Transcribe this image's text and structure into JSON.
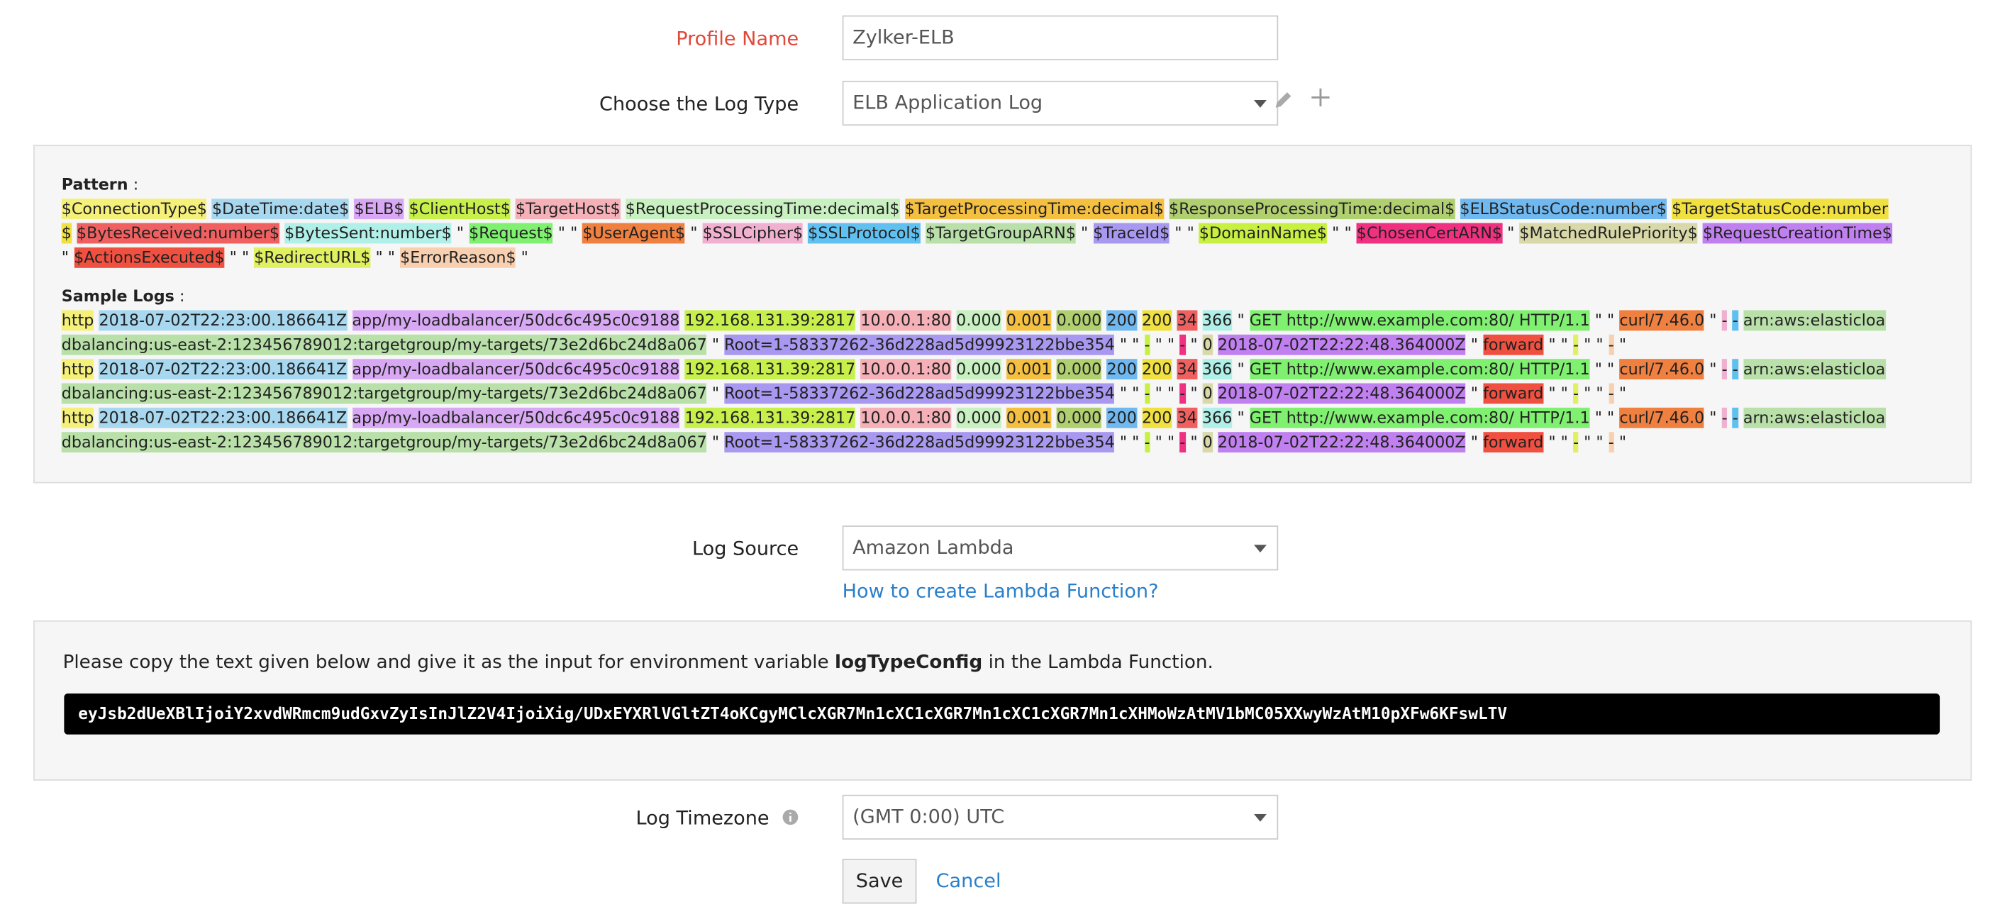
{
  "profile": {
    "label": "Profile Name",
    "value": "Zylker-ELB"
  },
  "log_type": {
    "label": "Choose the Log Type",
    "value": "ELB Application Log"
  },
  "pattern": {
    "label": "Pattern",
    "colon": ":",
    "tokens": [
      [
        "$ConnectionType$",
        "#f5f07a"
      ],
      [
        "$DateTime:date$",
        "#a8d8f0"
      ],
      [
        "$ELB$",
        "#d9a8f5"
      ],
      [
        "$ClientHost$",
        "#c8f04a"
      ],
      [
        "$TargetHost$",
        "#f5b0b8"
      ],
      [
        "$RequestProcessingTime:decimal$",
        "#c8f0c0"
      ],
      [
        "$TargetProcessingTime:decimal$",
        "#f5c040"
      ],
      [
        "$ResponseProcessingTime:decimal$",
        "#b0d070"
      ],
      [
        "$ELBStatusCode:number$",
        "#70b8f0"
      ],
      [
        "$TargetStatusCode:number$",
        "#f0e040"
      ],
      [
        "$BytesReceived:number$",
        "#f06060"
      ],
      [
        "$BytesSent:number$",
        "#b0f0e8"
      ],
      [
        "\"",
        null
      ],
      [
        "$Request$",
        "#80f070"
      ],
      [
        "\" \"",
        null
      ],
      [
        "$UserAgent$",
        "#f08040"
      ],
      [
        "\"",
        null
      ],
      [
        "$SSLCipher$",
        "#f0b0d0"
      ],
      [
        "$SSLProtocol$",
        "#60c0f0"
      ],
      [
        "$TargetGroupARN$",
        "#b8e0a8"
      ],
      [
        "\"",
        null
      ],
      [
        "$TraceId$",
        "#a898f0"
      ],
      [
        "\" \"",
        null
      ],
      [
        "$DomainName$",
        "#c8f040"
      ],
      [
        "\" \"",
        null
      ],
      [
        "$ChosenCertARN$",
        "#f03080"
      ],
      [
        "\"",
        null
      ],
      [
        "$MatchedRulePriority$",
        "#d8d8a8"
      ],
      [
        "$RequestCreationTime$",
        "#c080f0"
      ],
      [
        "\"",
        null
      ],
      [
        "$ActionsExecuted$",
        "#f05040"
      ],
      [
        "\" \"",
        null
      ],
      [
        "$RedirectURL$",
        "#e0f060"
      ],
      [
        "\" \"",
        null
      ],
      [
        "$ErrorReason$",
        "#f8d0b0"
      ],
      [
        "\"",
        null
      ]
    ]
  },
  "sample_logs": {
    "label": "Sample Logs",
    "colon": ":",
    "lines": [
      [
        [
          "http",
          "#f5f07a"
        ],
        [
          "2018-07-02T22:23:00.186641Z",
          "#a8d8f0"
        ],
        [
          "app/my-loadbalancer/50dc6c495c0c9188",
          "#d9a8f5"
        ],
        [
          "192.168.131.39:2817",
          "#c8f04a"
        ],
        [
          "10.0.0.1:80",
          "#f5b0b8"
        ],
        [
          "0.000",
          "#c8f0c0"
        ],
        [
          "0.001",
          "#f5c040"
        ],
        [
          "0.000",
          "#b0d070"
        ],
        [
          "200",
          "#70b8f0"
        ],
        [
          "200",
          "#f0e040"
        ],
        [
          "34",
          "#f06060"
        ],
        [
          "366",
          "#b0f0e8"
        ],
        [
          "\"",
          null
        ],
        [
          "GET http://www.example.com:80/ HTTP/1.1",
          "#80f070"
        ],
        [
          "\" \"",
          null
        ],
        [
          "curl/7.46.0",
          "#f08040"
        ],
        [
          "\"",
          null
        ],
        [
          "-",
          "#f0b0d0"
        ],
        [
          "-",
          "#60c0f0"
        ],
        [
          "arn:aws:elasticloadbalancing:us-east-2:123456789012:targetgroup/my-targets/73e2d6bc24d8a067",
          "#b8e0a8"
        ],
        [
          "\"",
          null
        ],
        [
          "Root=1-58337262-36d228ad5d99923122bbe354",
          "#a898f0"
        ],
        [
          "\" \"",
          null
        ],
        [
          "-",
          "#c8f040"
        ],
        [
          "\" \"",
          null
        ],
        [
          "-",
          "#f03080"
        ],
        [
          "\"",
          null
        ],
        [
          "0",
          "#d8d8a8"
        ],
        [
          "2018-07-02T22:22:48.364000Z",
          "#c080f0"
        ],
        [
          "\"",
          null
        ],
        [
          "forward",
          "#f05040"
        ],
        [
          "\" \"",
          null
        ],
        [
          "-",
          "#e0f060"
        ],
        [
          "\" \"",
          null
        ],
        [
          "-",
          "#f8d0b0"
        ],
        [
          "\"",
          null
        ]
      ],
      [
        [
          "http",
          "#f5f07a"
        ],
        [
          "2018-07-02T22:23:00.186641Z",
          "#a8d8f0"
        ],
        [
          "app/my-loadbalancer/50dc6c495c0c9188",
          "#d9a8f5"
        ],
        [
          "192.168.131.39:2817",
          "#c8f04a"
        ],
        [
          "10.0.0.1:80",
          "#f5b0b8"
        ],
        [
          "0.000",
          "#c8f0c0"
        ],
        [
          "0.001",
          "#f5c040"
        ],
        [
          "0.000",
          "#b0d070"
        ],
        [
          "200",
          "#70b8f0"
        ],
        [
          "200",
          "#f0e040"
        ],
        [
          "34",
          "#f06060"
        ],
        [
          "366",
          "#b0f0e8"
        ],
        [
          "\"",
          null
        ],
        [
          "GET http://www.example.com:80/ HTTP/1.1",
          "#80f070"
        ],
        [
          "\" \"",
          null
        ],
        [
          "curl/7.46.0",
          "#f08040"
        ],
        [
          "\"",
          null
        ],
        [
          "-",
          "#f0b0d0"
        ],
        [
          "-",
          "#60c0f0"
        ],
        [
          "arn:aws:elasticloadbalancing:us-east-2:123456789012:targetgroup/my-targets/73e2d6bc24d8a067",
          "#b8e0a8"
        ],
        [
          "\"",
          null
        ],
        [
          "Root=1-58337262-36d228ad5d99923122bbe354",
          "#a898f0"
        ],
        [
          "\" \"",
          null
        ],
        [
          "-",
          "#c8f040"
        ],
        [
          "\" \"",
          null
        ],
        [
          "-",
          "#f03080"
        ],
        [
          "\"",
          null
        ],
        [
          "0",
          "#d8d8a8"
        ],
        [
          "2018-07-02T22:22:48.364000Z",
          "#c080f0"
        ],
        [
          "\"",
          null
        ],
        [
          "forward",
          "#f05040"
        ],
        [
          "\" \"",
          null
        ],
        [
          "-",
          "#e0f060"
        ],
        [
          "\" \"",
          null
        ],
        [
          "-",
          "#f8d0b0"
        ],
        [
          "\"",
          null
        ]
      ],
      [
        [
          "http",
          "#f5f07a"
        ],
        [
          "2018-07-02T22:23:00.186641Z",
          "#a8d8f0"
        ],
        [
          "app/my-loadbalancer/50dc6c495c0c9188",
          "#d9a8f5"
        ],
        [
          "192.168.131.39:2817",
          "#c8f04a"
        ],
        [
          "10.0.0.1:80",
          "#f5b0b8"
        ],
        [
          "0.000",
          "#c8f0c0"
        ],
        [
          "0.001",
          "#f5c040"
        ],
        [
          "0.000",
          "#b0d070"
        ],
        [
          "200",
          "#70b8f0"
        ],
        [
          "200",
          "#f0e040"
        ],
        [
          "34",
          "#f06060"
        ],
        [
          "366",
          "#b0f0e8"
        ],
        [
          "\"",
          null
        ],
        [
          "GET http://www.example.com:80/ HTTP/1.1",
          "#80f070"
        ],
        [
          "\" \"",
          null
        ],
        [
          "curl/7.46.0",
          "#f08040"
        ],
        [
          "\"",
          null
        ],
        [
          "-",
          "#f0b0d0"
        ],
        [
          "-",
          "#60c0f0"
        ],
        [
          "arn:aws:elasticloadbalancing:us-east-2:123456789012:targetgroup/my-targets/73e2d6bc24d8a067",
          "#b8e0a8"
        ],
        [
          "\"",
          null
        ],
        [
          "Root=1-58337262-36d228ad5d99923122bbe354",
          "#a898f0"
        ],
        [
          "\" \"",
          null
        ],
        [
          "-",
          "#c8f040"
        ],
        [
          "\" \"",
          null
        ],
        [
          "-",
          "#f03080"
        ],
        [
          "\"",
          null
        ],
        [
          "0",
          "#d8d8a8"
        ],
        [
          "2018-07-02T22:22:48.364000Z",
          "#c080f0"
        ],
        [
          "\"",
          null
        ],
        [
          "forward",
          "#f05040"
        ],
        [
          "\" \"",
          null
        ],
        [
          "-",
          "#e0f060"
        ],
        [
          "\" \"",
          null
        ],
        [
          "-",
          "#f8d0b0"
        ],
        [
          "\"",
          null
        ]
      ]
    ]
  },
  "log_source": {
    "label": "Log Source",
    "value": "Amazon Lambda",
    "link": "How to create Lambda Function?"
  },
  "lambda": {
    "text_before": "Please copy the text given below and give it as the input for environment variable ",
    "variable": "logTypeConfig",
    "text_after": " in the Lambda Function.",
    "code": "eyJsb2dUeXBlIjoiY2xvdWRmcm9udGxvZyIsInJlZ2V4IjoiXig/UDxEYXRlVGltZT4oKCgyMClcXGR7Mn1cXC1cXGR7Mn1cXC1cXGR7Mn1cXHMoWzAtMV1bMC05XXwyWzAtM10pXFw6KFswLTV"
  },
  "timezone": {
    "label": "Log Timezone",
    "value": "(GMT 0:00) UTC"
  },
  "buttons": {
    "save": "Save",
    "cancel": "Cancel"
  }
}
